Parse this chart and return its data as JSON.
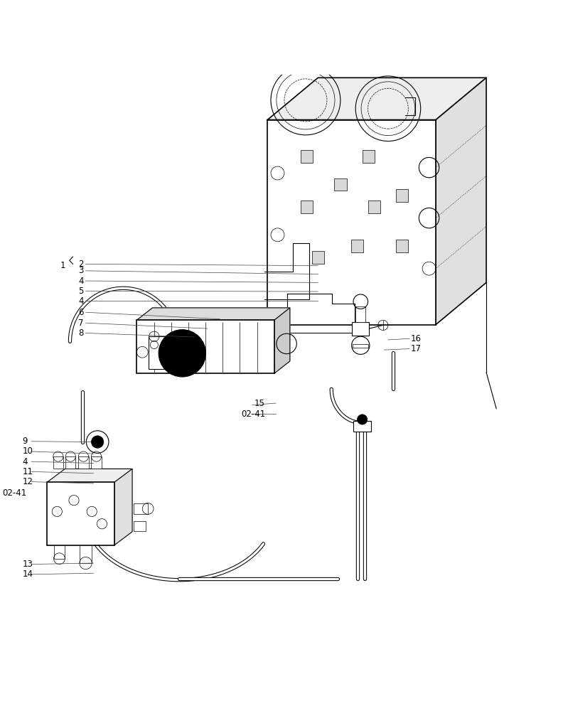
{
  "background_color": "#ffffff",
  "line_color": "#000000",
  "label_color": "#000000",
  "figure_width": 7.92,
  "figure_height": 10.0,
  "dpi": 100
}
